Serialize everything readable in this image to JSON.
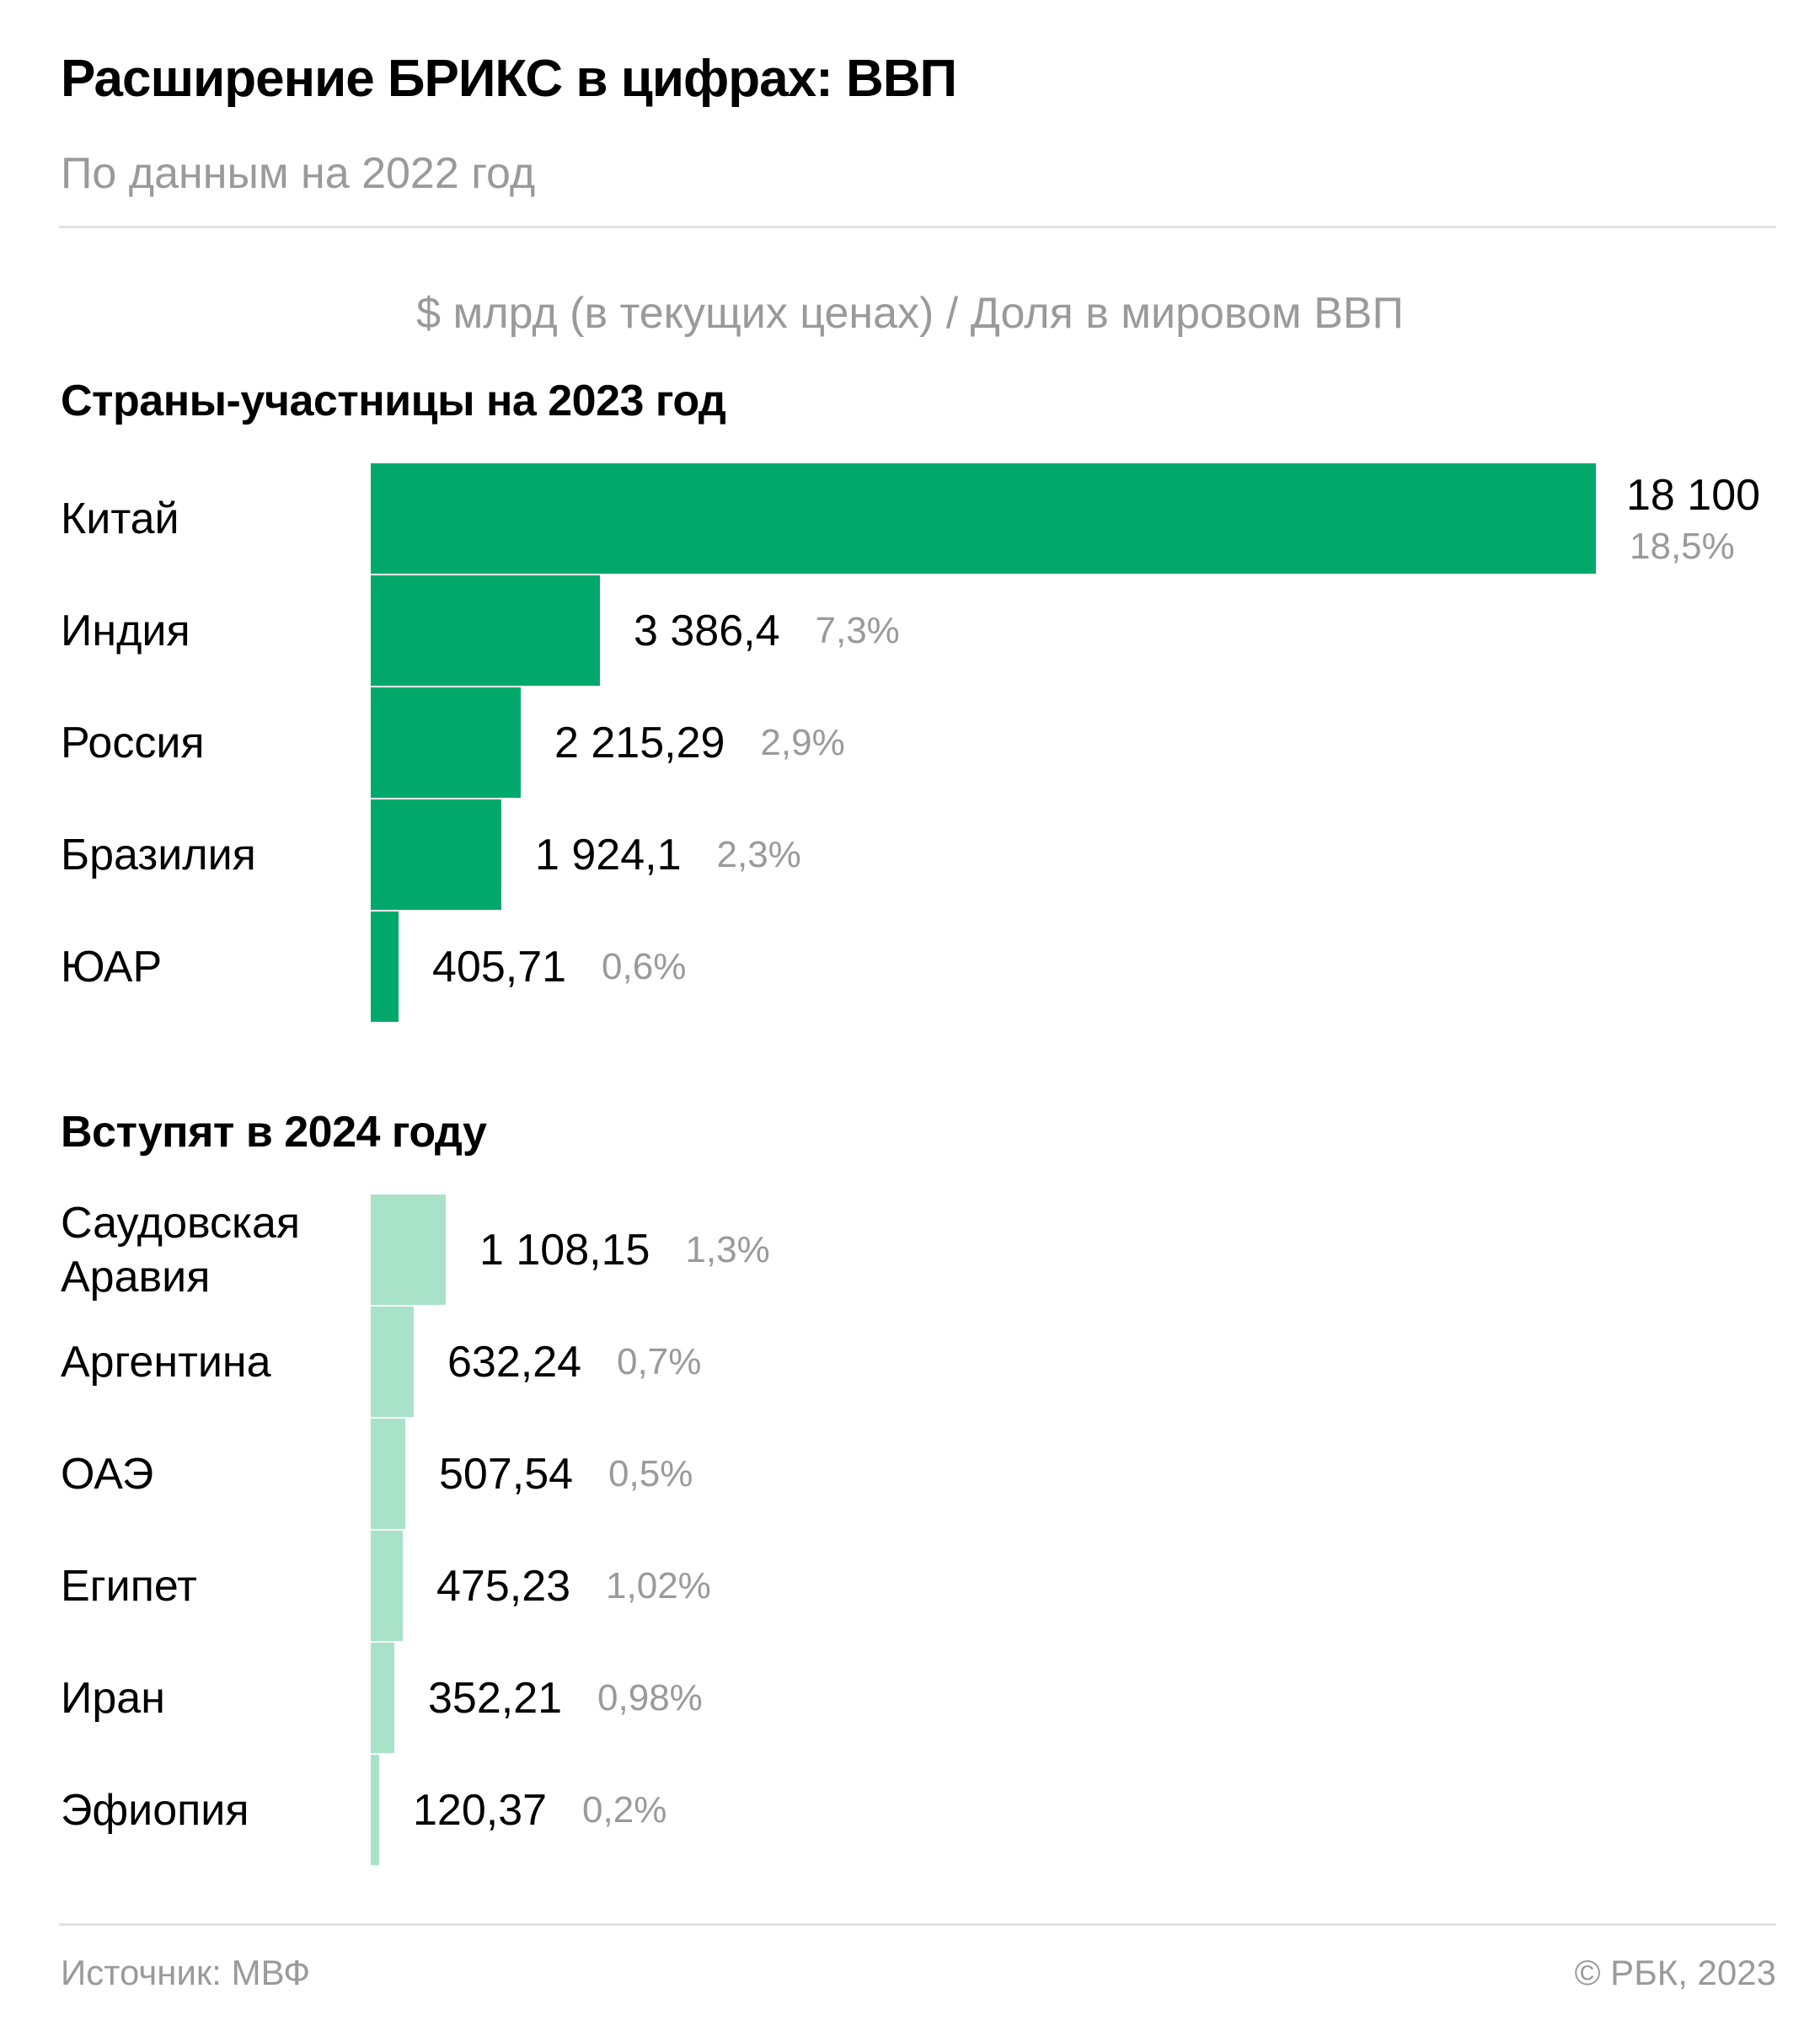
{
  "header": {
    "title": "Расширение БРИКС в цифрах: ВВП",
    "subtitle": "По данным на 2022 год",
    "units": "$ млрд (в текущих ценах) / Доля в мировом ВВП"
  },
  "footer": {
    "source": "Источник: МВФ",
    "copyright": "© РБК, 2023"
  },
  "colors": {
    "members": "#00a86b",
    "joining": "#a8e2c9"
  },
  "chart_data": {
    "type": "bar",
    "orientation": "horizontal",
    "xlim": [
      0,
      18100
    ],
    "groups": [
      {
        "title": "Страны-участницы на 2023 год",
        "color": "#00a86b",
        "items": [
          {
            "label": "Китай",
            "value": 18100,
            "value_label": "18 100",
            "share": "18,5%"
          },
          {
            "label": "Индия",
            "value": 3386.4,
            "value_label": "3 386,4",
            "share": "7,3%"
          },
          {
            "label": "Россия",
            "value": 2215.29,
            "value_label": "2 215,29",
            "share": "2,9%"
          },
          {
            "label": "Бразилия",
            "value": 1924.1,
            "value_label": "1 924,1",
            "share": "2,3%"
          },
          {
            "label": "ЮАР",
            "value": 405.71,
            "value_label": "405,71",
            "share": "0,6%"
          }
        ]
      },
      {
        "title": "Вступят в 2024 году",
        "color": "#a8e2c9",
        "items": [
          {
            "label": "Саудовская Аравия",
            "value": 1108.15,
            "value_label": "1 108,15",
            "share": "1,3%"
          },
          {
            "label": "Аргентина",
            "value": 632.24,
            "value_label": "632,24",
            "share": "0,7%"
          },
          {
            "label": "ОАЭ",
            "value": 507.54,
            "value_label": "507,54",
            "share": "0,5%"
          },
          {
            "label": "Египет",
            "value": 475.23,
            "value_label": "475,23",
            "share": "1,02%"
          },
          {
            "label": "Иран",
            "value": 352.21,
            "value_label": "352,21",
            "share": "0,98%"
          },
          {
            "label": "Эфиопия",
            "value": 120.37,
            "value_label": "120,37",
            "share": "0,2%"
          }
        ]
      }
    ]
  }
}
